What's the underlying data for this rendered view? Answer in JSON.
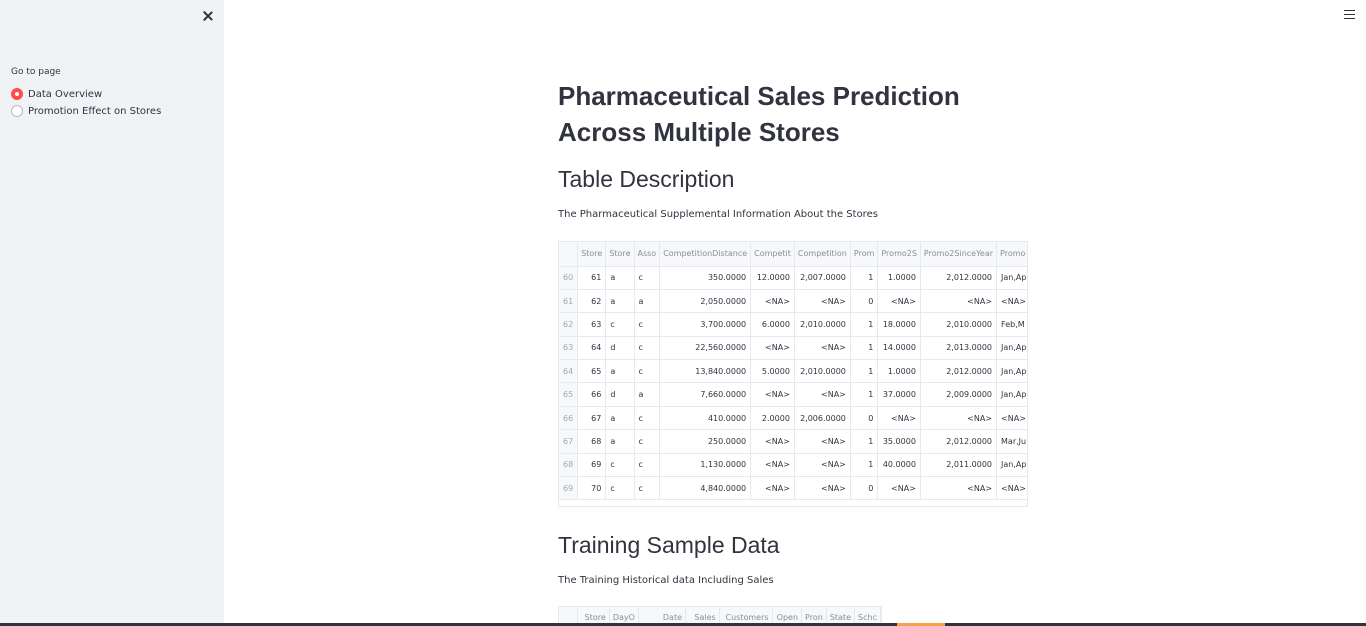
{
  "sidebar": {
    "nav_label": "Go to page",
    "options": [
      {
        "label": "Data Overview",
        "selected": true
      },
      {
        "label": "Promotion Effect on Stores",
        "selected": false
      }
    ],
    "accent_color": "#ff4b4b"
  },
  "main": {
    "title": "Pharmaceutical Sales Prediction Across Multiple Stores",
    "section1": {
      "heading": "Table Description",
      "caption": "The Pharmaceutical Supplemental Information About the Stores",
      "columns": [
        "",
        "Store",
        "Store",
        "Asso",
        "CompetitionDistance",
        "Competit",
        "Competition",
        "Prom",
        "Promo2S",
        "Promo2SinceYear",
        "Promo"
      ],
      "rows": [
        [
          "60",
          "61",
          "a",
          "c",
          "350.0000",
          "12.0000",
          "2,007.0000",
          "1",
          "1.0000",
          "2,012.0000",
          "Jan,Ap"
        ],
        [
          "61",
          "62",
          "a",
          "a",
          "2,050.0000",
          "<NA>",
          "<NA>",
          "0",
          "<NA>",
          "<NA>",
          "<NA>"
        ],
        [
          "62",
          "63",
          "c",
          "c",
          "3,700.0000",
          "6.0000",
          "2,010.0000",
          "1",
          "18.0000",
          "2,010.0000",
          "Feb,M"
        ],
        [
          "63",
          "64",
          "d",
          "c",
          "22,560.0000",
          "<NA>",
          "<NA>",
          "1",
          "14.0000",
          "2,013.0000",
          "Jan,Ap"
        ],
        [
          "64",
          "65",
          "a",
          "c",
          "13,840.0000",
          "5.0000",
          "2,010.0000",
          "1",
          "1.0000",
          "2,012.0000",
          "Jan,Ap"
        ],
        [
          "65",
          "66",
          "d",
          "a",
          "7,660.0000",
          "<NA>",
          "<NA>",
          "1",
          "37.0000",
          "2,009.0000",
          "Jan,Ap"
        ],
        [
          "66",
          "67",
          "a",
          "c",
          "410.0000",
          "2.0000",
          "2,006.0000",
          "0",
          "<NA>",
          "<NA>",
          "<NA>"
        ],
        [
          "67",
          "68",
          "a",
          "c",
          "250.0000",
          "<NA>",
          "<NA>",
          "1",
          "35.0000",
          "2,012.0000",
          "Mar,Ju"
        ],
        [
          "68",
          "69",
          "c",
          "c",
          "1,130.0000",
          "<NA>",
          "<NA>",
          "1",
          "40.0000",
          "2,011.0000",
          "Jan,Ap"
        ],
        [
          "69",
          "70",
          "c",
          "c",
          "4,840.0000",
          "<NA>",
          "<NA>",
          "0",
          "<NA>",
          "<NA>",
          "<NA>"
        ]
      ]
    },
    "section2": {
      "heading": "Training Sample Data",
      "caption": "The Training Historical data Including Sales",
      "columns": [
        "",
        "Store",
        "DayO",
        "Date",
        "Sales",
        "Customers",
        "Open",
        "Pron",
        "State",
        "Schc"
      ]
    }
  }
}
